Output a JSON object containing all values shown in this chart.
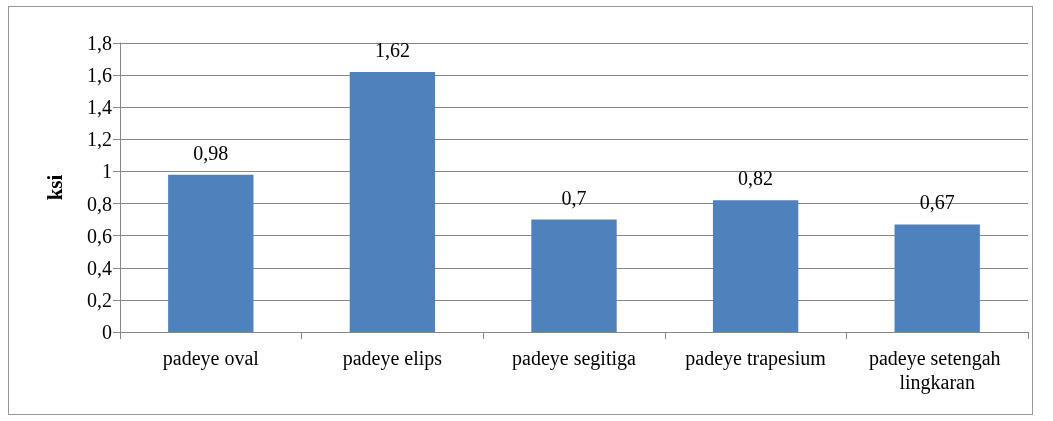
{
  "chart_data": {
    "type": "bar",
    "ylabel": "ksi",
    "categories": [
      "padeye oval",
      "padeye elips",
      "padeye segitiga",
      "padeye trapesium",
      "padeye setengah lingkaran"
    ],
    "values": [
      0.98,
      1.62,
      0.7,
      0.82,
      0.67
    ],
    "value_labels": [
      "0,98",
      "1,62",
      "0,7",
      "0,82",
      "0,67"
    ],
    "color": "#4f81bd",
    "ylim": [
      0,
      1.8
    ],
    "yticks": [
      {
        "value": 0,
        "label": "0"
      },
      {
        "value": 0.2,
        "label": "0,2"
      },
      {
        "value": 0.4,
        "label": "0,4"
      },
      {
        "value": 0.6,
        "label": "0,6"
      },
      {
        "value": 0.8,
        "label": "0,8"
      },
      {
        "value": 1,
        "label": "1"
      },
      {
        "value": 1.2,
        "label": "1,2"
      },
      {
        "value": 1.4,
        "label": "1,4"
      },
      {
        "value": 1.6,
        "label": "1,6"
      },
      {
        "value": 1.8,
        "label": "1,8"
      }
    ],
    "grid": true
  }
}
